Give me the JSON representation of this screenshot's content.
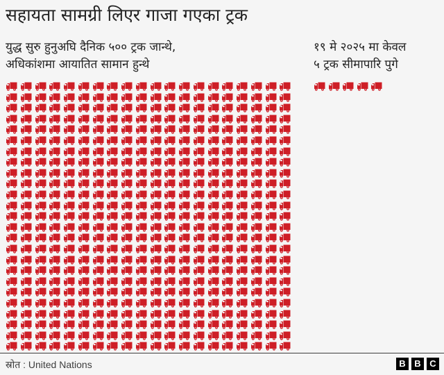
{
  "title": "सहायता सामग्री लिएर गाजा गएका ट्रक",
  "subtitle_left": {
    "line1": "युद्ध सुरु हुनुअघि दैनिक ५०० ट्रक जान्थे,",
    "line2": "अधिकांशमा आयातित सामान हुन्थे"
  },
  "subtitle_right": {
    "line1": "१९ मे २०२५ मा केवल",
    "line2": "५ ट्रक सीमापारि पुगे"
  },
  "footer": {
    "source": "स्रोत :  United Nations",
    "logo": [
      "B",
      "B",
      "C"
    ]
  },
  "colors": {
    "truck": "#CE1E26",
    "background": "#F5F5F5",
    "text": "#222222",
    "divider": "#3D3D3D"
  },
  "icon": "truck-icon",
  "chart_data": {
    "type": "pictogram",
    "title": "सहायता सामग्री लिएर गाजा गएका ट्रक",
    "unit": "1 icon = 1 truck",
    "categories": [
      "युद्ध सुरु हुनुअघि दैनिक (Daily before the war)",
      "१९ मे २०२५ (19 May 2025)"
    ],
    "values": [
      500,
      5
    ],
    "grids": [
      {
        "label": "युद्ध सुरु हुनुअघि दैनिक ५०० ट्रक जान्थे, अधिकांशमा आयातित सामान हुन्थे",
        "count": 500,
        "columns": 20,
        "rows": 25
      },
      {
        "label": "१९ मे २०२५ मा केवल ५ ट्रक सीमापारि पुगे",
        "count": 5,
        "columns": 5,
        "rows": 1
      }
    ],
    "source": "United Nations"
  }
}
